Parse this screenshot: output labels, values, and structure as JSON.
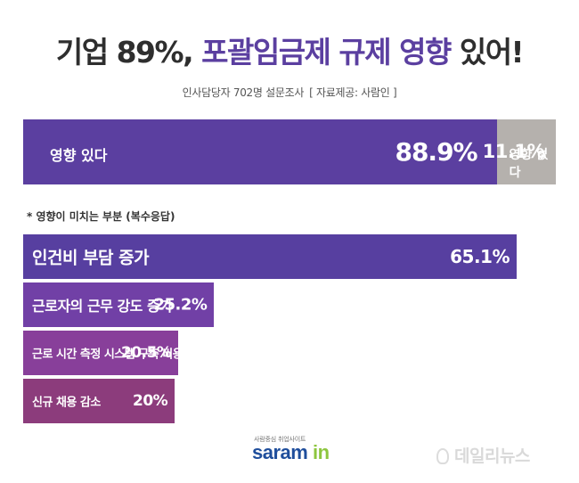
{
  "header": {
    "title_prefix": "기업 89%,",
    "title_highlight": "포괄임금제 규제 영향",
    "title_suffix": "있어!",
    "subtitle_sample": "인사담당자 702명  설문조사",
    "subtitle_source": "[ 자료제공: 사람인 ]"
  },
  "colors": {
    "purple": "#5b3fa0",
    "grey": "#b5b1ad",
    "bar1": "#573fa0",
    "bar2": "#7140a6",
    "bar3": "#883f9a",
    "bar4": "#8c3c7c",
    "logo_blue": "#1f4e9c",
    "logo_green": "#8dc63f"
  },
  "chart_data": [
    {
      "type": "bar",
      "orientation": "horizontal-stacked",
      "series": [
        {
          "name": "영향 있다",
          "value": 88.9,
          "label": "88.9%"
        },
        {
          "name": "영향 없다",
          "value": 11.1,
          "label": "11.1%"
        }
      ]
    },
    {
      "type": "bar",
      "orientation": "horizontal",
      "title": "* 영향이 미치는 부분 (복수응답)",
      "categories": [
        "인건비 부담 증가",
        "근로자의 근무 강도 증가",
        "근로 시간 측정 시스템 구축 비용 증가",
        "신규 채용 감소"
      ],
      "values": [
        65.1,
        25.2,
        20.5,
        20.0
      ],
      "value_labels": [
        "65.1%",
        "25.2%",
        "20.5%",
        "20%"
      ],
      "xlim": [
        0,
        70
      ]
    }
  ],
  "logo": {
    "tagline": "사람중심 취업사이트",
    "name": "saram",
    "name_accent": "in"
  },
  "watermark": "데일리뉴스"
}
